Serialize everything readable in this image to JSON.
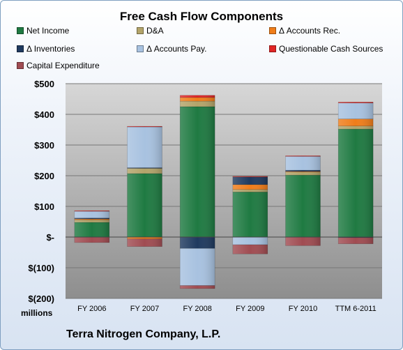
{
  "chart_data": {
    "type": "bar",
    "stacked": true,
    "title": "Free Cash Flow Components",
    "units_label": "millions",
    "company": "Terra Nitrogen Company, L.P.",
    "categories": [
      "FY 2006",
      "FY 2007",
      "FY 2008",
      "FY 2009",
      "FY 2010",
      "TTM 6-2011"
    ],
    "ylim": [
      -200,
      500
    ],
    "yticks": [
      {
        "value": 500,
        "label": "$500"
      },
      {
        "value": 400,
        "label": "$400"
      },
      {
        "value": 300,
        "label": "$300"
      },
      {
        "value": 200,
        "label": "$200"
      },
      {
        "value": 100,
        "label": "$100"
      },
      {
        "value": 0,
        "label": "$-"
      },
      {
        "value": -100,
        "label": "$(100)"
      },
      {
        "value": -200,
        "label": "$(200)"
      }
    ],
    "grid": true,
    "legend_position": "top",
    "series": [
      {
        "name": "Net Income",
        "color": "#1f7a42",
        "values": [
          48,
          207,
          425,
          147,
          202,
          352
        ]
      },
      {
        "name": "D&A",
        "color": "#b3a46a",
        "values": [
          8,
          17,
          18,
          8,
          10,
          10
        ]
      },
      {
        "name": "Δ Accounts Rec.",
        "color": "#f07d1a",
        "values": [
          3,
          -6,
          12,
          16,
          2,
          23
        ]
      },
      {
        "name": "Δ Inventories",
        "color": "#1f3a5f",
        "values": [
          3,
          2,
          -37,
          25,
          4,
          -2
        ]
      },
      {
        "name": "Δ Accounts Pay.",
        "color": "#a8c2e0",
        "values": [
          22,
          133,
          -121,
          -25,
          45,
          52
        ]
      },
      {
        "name": "Questionable Cash Sources",
        "color": "#e02525",
        "values": [
          2,
          2,
          7,
          2,
          2,
          3
        ]
      },
      {
        "name": "Capital Expenditure",
        "color": "#a04c52",
        "values": [
          -18,
          -25,
          -10,
          -30,
          -28,
          -20
        ]
      }
    ]
  }
}
